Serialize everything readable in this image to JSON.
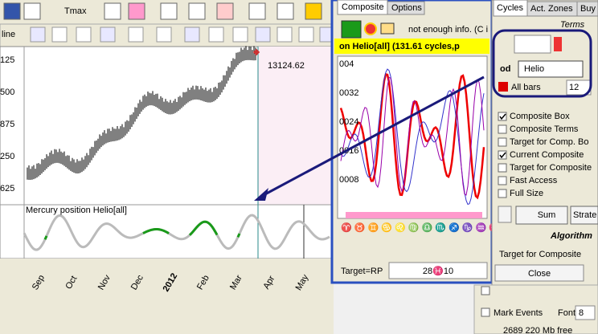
{
  "toolbar": {
    "tmax": "Tmax",
    "line": "line"
  },
  "chart": {
    "price_label": "13124.62",
    "y_labels": [
      "125",
      "500",
      "875",
      "250",
      "625"
    ],
    "indicator_title": "Mercury position Helio[all]",
    "months": [
      "Sep",
      "Oct",
      "Nov",
      "Dec",
      "2012",
      "Feb",
      "Mar",
      "Apr",
      "May"
    ]
  },
  "dialog": {
    "tabs": [
      "Composite",
      "Options"
    ],
    "status": "not enough info. (C i",
    "banner": "on Helio[all]  (131.61 cycles,p",
    "y_labels": [
      "004",
      "0032",
      "0024",
      "0016",
      "0008"
    ],
    "target_label": "Target=RP",
    "target_value": "28♓10"
  },
  "panel": {
    "tabs": [
      "Cycles",
      "Act. Zones",
      "Buy"
    ],
    "terms": "Terms",
    "planet": "Helio",
    "bars": "All bars",
    "bars_count": "12",
    "options": [
      {
        "label": "Composite Box",
        "checked": true
      },
      {
        "label": "Composite Terms",
        "checked": false
      },
      {
        "label": "Target for Comp. Bo",
        "checked": false
      },
      {
        "label": "Current Composite",
        "checked": true
      },
      {
        "label": "Target for Composite",
        "checked": false
      },
      {
        "label": "Fast Access",
        "checked": false
      },
      {
        "label": "Full Size",
        "checked": false
      }
    ],
    "sum": "Sum",
    "strategy": "Strate",
    "algorithm": "Algorithm",
    "target": "Target for Composite",
    "close": "Close"
  },
  "bottom": {
    "mark_events": "Mark Events",
    "font": "Font",
    "font_size": "8",
    "memory": "2689 220 Mb free"
  }
}
